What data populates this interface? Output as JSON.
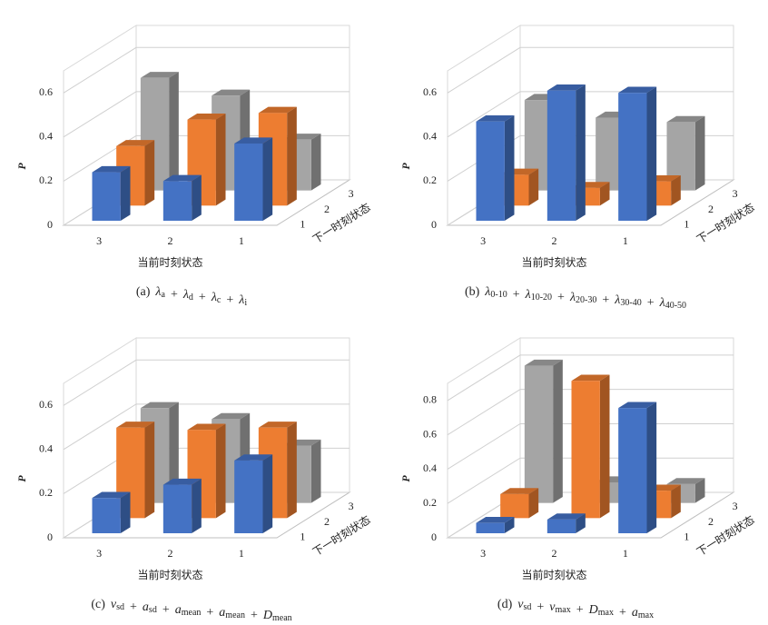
{
  "chart_data": [
    {
      "type": "bar3d",
      "ylabel": "P",
      "xlabel": "当前时刻状态",
      "depth_label": "下一时刻状态",
      "caption": [
        {
          "text": "(a)"
        },
        {
          "text": "λ",
          "sub": "a"
        },
        {
          "text": "+"
        },
        {
          "text": "λ",
          "sub": "d"
        },
        {
          "text": "+"
        },
        {
          "text": "λ",
          "sub": "c"
        },
        {
          "text": "+"
        },
        {
          "text": "λ",
          "sub": "i"
        }
      ],
      "categories": [
        "3",
        "2",
        "1"
      ],
      "series": [
        {
          "name": "1",
          "color": "#4472c4",
          "values": [
            0.22,
            0.18,
            0.35
          ]
        },
        {
          "name": "2",
          "color": "#ed7d31",
          "values": [
            0.27,
            0.39,
            0.42
          ]
        },
        {
          "name": "3",
          "color": "#a5a5a5",
          "values": [
            0.51,
            0.43,
            0.23
          ]
        }
      ],
      "ylim": [
        0,
        0.7
      ],
      "yticks": [
        0,
        0.2,
        0.4,
        0.6
      ],
      "grid": true
    },
    {
      "type": "bar3d",
      "ylabel": "P",
      "xlabel": "当前时刻状态",
      "depth_label": "下一时刻状态",
      "caption": [
        {
          "text": "(b)"
        },
        {
          "text": "λ",
          "sub": "0-10"
        },
        {
          "text": "+"
        },
        {
          "text": "λ",
          "sub": "10-20"
        },
        {
          "text": "+"
        },
        {
          "text": "λ",
          "sub": "20-30"
        },
        {
          "text": "+"
        },
        {
          "text": "λ",
          "sub": "30-40"
        },
        {
          "text": "+"
        },
        {
          "text": "λ",
          "sub": "40-50"
        }
      ],
      "categories": [
        "3",
        "2",
        "1"
      ],
      "series": [
        {
          "name": "1",
          "color": "#4472c4",
          "values": [
            0.45,
            0.59,
            0.58
          ]
        },
        {
          "name": "2",
          "color": "#ed7d31",
          "values": [
            0.14,
            0.08,
            0.11
          ]
        },
        {
          "name": "3",
          "color": "#a5a5a5",
          "values": [
            0.41,
            0.33,
            0.31
          ]
        }
      ],
      "ylim": [
        0,
        0.7
      ],
      "yticks": [
        0,
        0.2,
        0.4,
        0.6
      ],
      "grid": true
    },
    {
      "type": "bar3d",
      "ylabel": "P",
      "xlabel": "当前时刻状态",
      "depth_label": "下一时刻状态",
      "caption": [
        {
          "text": "(c)"
        },
        {
          "text": "v",
          "sub": "sd"
        },
        {
          "text": "+"
        },
        {
          "text": "a",
          "sub": "sd"
        },
        {
          "text": "+"
        },
        {
          "text": "a",
          "sub": "mean"
        },
        {
          "text": "+"
        },
        {
          "text": "a",
          "sub": "mean"
        },
        {
          "text": "+"
        },
        {
          "text": "D",
          "sub": "mean"
        }
      ],
      "categories": [
        "3",
        "2",
        "1"
      ],
      "series": [
        {
          "name": "1",
          "color": "#4472c4",
          "values": [
            0.16,
            0.22,
            0.33
          ]
        },
        {
          "name": "2",
          "color": "#ed7d31",
          "values": [
            0.41,
            0.4,
            0.41
          ]
        },
        {
          "name": "3",
          "color": "#a5a5a5",
          "values": [
            0.43,
            0.38,
            0.26
          ]
        }
      ],
      "ylim": [
        0,
        0.7
      ],
      "yticks": [
        0,
        0.2,
        0.4,
        0.6
      ],
      "grid": true
    },
    {
      "type": "bar3d",
      "ylabel": "P",
      "xlabel": "当前时刻状态",
      "depth_label": "下一时刻状态",
      "caption": [
        {
          "text": "(d)"
        },
        {
          "text": "v",
          "sub": "sd"
        },
        {
          "text": "+"
        },
        {
          "text": "v",
          "sub": "max"
        },
        {
          "text": "+"
        },
        {
          "text": "D",
          "sub": "max"
        },
        {
          "text": "+"
        },
        {
          "text": "a",
          "sub": "max"
        }
      ],
      "categories": [
        "3",
        "2",
        "1"
      ],
      "series": [
        {
          "name": "1",
          "color": "#4472c4",
          "values": [
            0.06,
            0.08,
            0.73
          ]
        },
        {
          "name": "2",
          "color": "#ed7d31",
          "values": [
            0.14,
            0.8,
            0.16
          ]
        },
        {
          "name": "3",
          "color": "#a5a5a5",
          "values": [
            0.8,
            0.12,
            0.11
          ]
        }
      ],
      "ylim": [
        0,
        0.9
      ],
      "yticks": [
        0,
        0.2,
        0.4,
        0.6,
        0.8
      ],
      "grid": true
    }
  ]
}
